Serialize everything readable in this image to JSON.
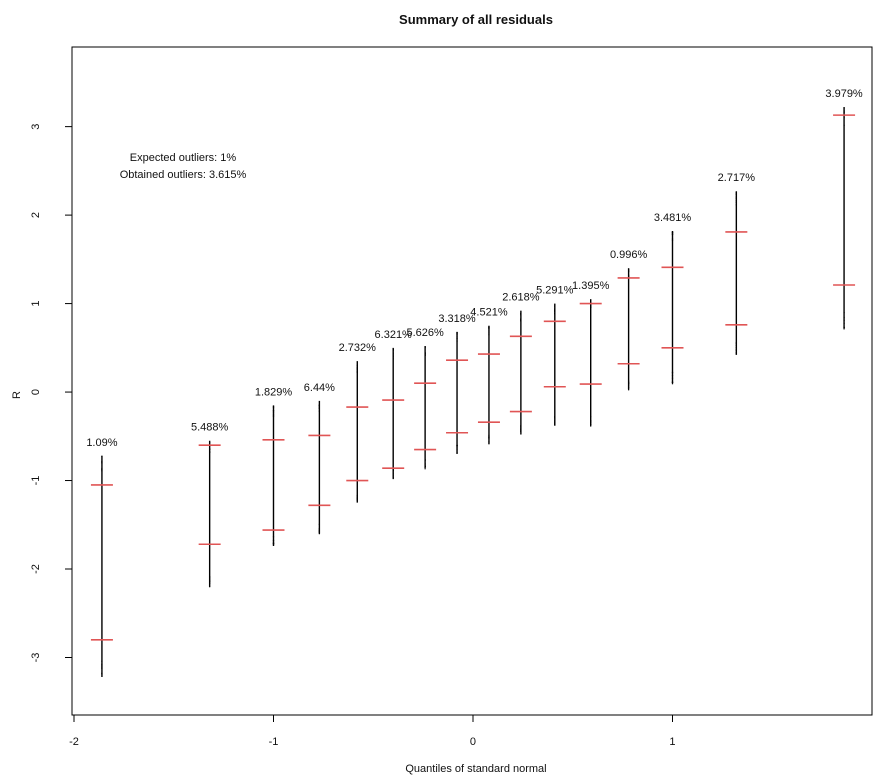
{
  "chart_data": {
    "type": "scatter",
    "title": "Summary of all residuals",
    "xlabel": "Quantiles of standard normal",
    "ylabel": "R",
    "xlim": [
      -2.01,
      2.0
    ],
    "ylim": [
      -3.65,
      3.9
    ],
    "x_ticks": [
      -2,
      -1,
      0,
      1
    ],
    "y_ticks": [
      -3,
      -2,
      -1,
      0,
      1,
      2,
      3
    ],
    "y_tick_labels_rotated": true,
    "grid": false,
    "annotations": [
      {
        "text": "Expected outliers: 1%"
      },
      {
        "text": "Obtained outliers: 3.615%"
      }
    ],
    "colors": {
      "quantile_marker": "#e05555",
      "range_line": "#000000",
      "outlier_points": "#000000"
    },
    "groups": [
      {
        "x": -1.86,
        "min": -3.22,
        "max": -0.72,
        "q_low": -2.8,
        "q_high": -1.05,
        "outlier_pct": "1.09%"
      },
      {
        "x": -1.32,
        "min": -2.2,
        "max": -0.55,
        "q_low": -1.72,
        "q_high": -0.6,
        "outlier_pct": "5.488%"
      },
      {
        "x": -1.0,
        "min": -1.74,
        "max": -0.15,
        "q_low": -1.56,
        "q_high": -0.54,
        "outlier_pct": "1.829%"
      },
      {
        "x": -0.77,
        "min": -1.6,
        "max": -0.1,
        "q_low": -1.28,
        "q_high": -0.49,
        "outlier_pct": "6.44%"
      },
      {
        "x": -0.58,
        "min": -1.25,
        "max": 0.35,
        "q_low": -1.0,
        "q_high": -0.17,
        "outlier_pct": "2.732%"
      },
      {
        "x": -0.4,
        "min": -0.98,
        "max": 0.5,
        "q_low": -0.86,
        "q_high": -0.09,
        "outlier_pct": "6.321%"
      },
      {
        "x": -0.24,
        "min": -0.86,
        "max": 0.52,
        "q_low": -0.65,
        "q_high": 0.1,
        "outlier_pct": "5.626%"
      },
      {
        "x": -0.08,
        "min": -0.7,
        "max": 0.68,
        "q_low": -0.46,
        "q_high": 0.36,
        "outlier_pct": "3.318%"
      },
      {
        "x": 0.08,
        "min": -0.58,
        "max": 0.75,
        "q_low": -0.34,
        "q_high": 0.43,
        "outlier_pct": "4.521%"
      },
      {
        "x": 0.24,
        "min": -0.48,
        "max": 0.92,
        "q_low": -0.22,
        "q_high": 0.63,
        "outlier_pct": "2.618%"
      },
      {
        "x": 0.41,
        "min": -0.38,
        "max": 1.0,
        "q_low": 0.06,
        "q_high": 0.8,
        "outlier_pct": "5.291%"
      },
      {
        "x": 0.59,
        "min": -0.38,
        "max": 1.05,
        "q_low": 0.09,
        "q_high": 1.0,
        "outlier_pct": "1.395%"
      },
      {
        "x": 0.78,
        "min": 0.03,
        "max": 1.4,
        "q_low": 0.32,
        "q_high": 1.29,
        "outlier_pct": "0.996%"
      },
      {
        "x": 1.0,
        "min": 0.1,
        "max": 1.82,
        "q_low": 0.5,
        "q_high": 1.41,
        "outlier_pct": "3.481%"
      },
      {
        "x": 1.32,
        "min": 0.42,
        "max": 2.27,
        "q_low": 0.76,
        "q_high": 1.81,
        "outlier_pct": "2.717%"
      },
      {
        "x": 1.86,
        "min": 0.72,
        "max": 3.22,
        "q_low": 1.21,
        "q_high": 3.13,
        "outlier_pct": "3.979%"
      }
    ]
  }
}
